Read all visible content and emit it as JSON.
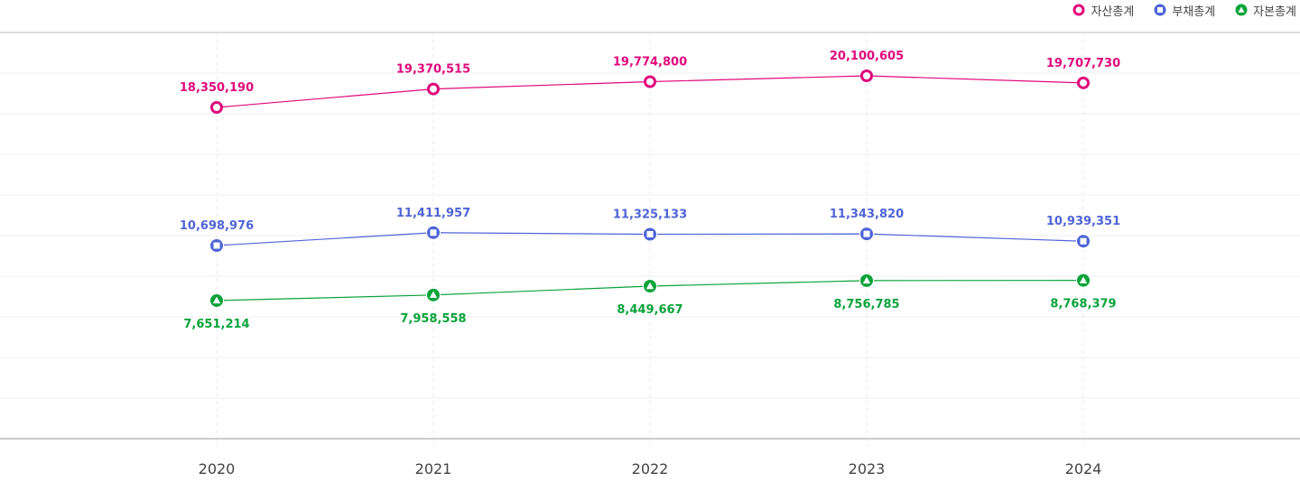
{
  "chart_data": {
    "type": "line",
    "categories": [
      "2020",
      "2021",
      "2022",
      "2023",
      "2024"
    ],
    "series": [
      {
        "name": "자산총계",
        "color": "#e0087d",
        "marker": "circle",
        "label_pos": "above",
        "values": [
          18350190,
          19370515,
          19774800,
          20100605,
          19707730
        ],
        "labels": [
          "18,350,190",
          "19,370,515",
          "19,774,800",
          "20,100,605",
          "19,707,730"
        ]
      },
      {
        "name": "부채총계",
        "color": "#4e64d8",
        "marker": "square",
        "label_pos": "above",
        "values": [
          10698976,
          11411957,
          11325133,
          11343820,
          10939351
        ],
        "labels": [
          "10,698,976",
          "11,411,957",
          "11,325,133",
          "11,343,820",
          "10,939,351"
        ]
      },
      {
        "name": "자본총계",
        "color": "#0aa33a",
        "marker": "triangle",
        "label_pos": "below",
        "values": [
          7651214,
          7958558,
          8449667,
          8756785,
          8768379
        ],
        "labels": [
          "7,651,214",
          "7,958,558",
          "8,449,667",
          "8,756,785",
          "8,768,379"
        ]
      }
    ],
    "ylim": [
      0,
      22500000
    ],
    "grid": true,
    "legend": "top-right",
    "title": "",
    "xlabel": "",
    "ylabel": ""
  }
}
